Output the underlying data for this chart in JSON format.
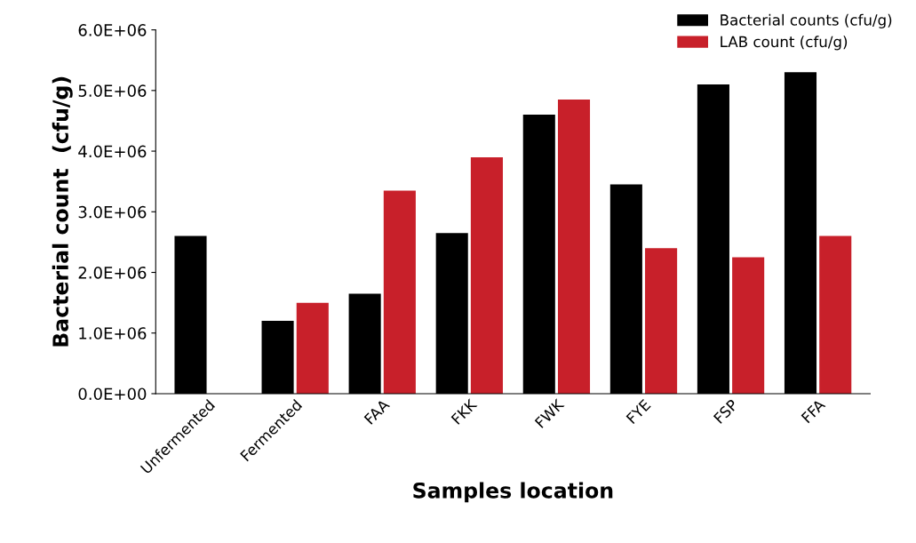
{
  "chart_data": {
    "type": "bar",
    "xlabel": "Samples location",
    "ylabel": "Bacterial count  (cfu/g)",
    "categories": [
      "Unfermented",
      "Fermented",
      "FAA",
      "FKK",
      "FWK",
      "FYE",
      "FSP",
      "FFA"
    ],
    "series": [
      {
        "name": "Bacterial counts (cfu/g)",
        "color": "#000000",
        "values": [
          2600000,
          1200000,
          1650000,
          2650000,
          4600000,
          3450000,
          5100000,
          5300000
        ]
      },
      {
        "name": "LAB count (cfu/g)",
        "color": "#c8202a",
        "values": [
          null,
          1500000,
          3350000,
          3900000,
          4850000,
          2400000,
          2250000,
          2600000
        ]
      }
    ],
    "ylim": [
      0,
      6000000
    ],
    "yticks": [
      {
        "value": 0,
        "label": "0.0E+00"
      },
      {
        "value": 1000000,
        "label": "1.0E+06"
      },
      {
        "value": 2000000,
        "label": "2.0E+06"
      },
      {
        "value": 3000000,
        "label": "3.0E+06"
      },
      {
        "value": 4000000,
        "label": "4.0E+06"
      },
      {
        "value": 5000000,
        "label": "5.0E+06"
      },
      {
        "value": 6000000,
        "label": "6.0E+06"
      }
    ],
    "grid": false,
    "legend": "top right"
  }
}
